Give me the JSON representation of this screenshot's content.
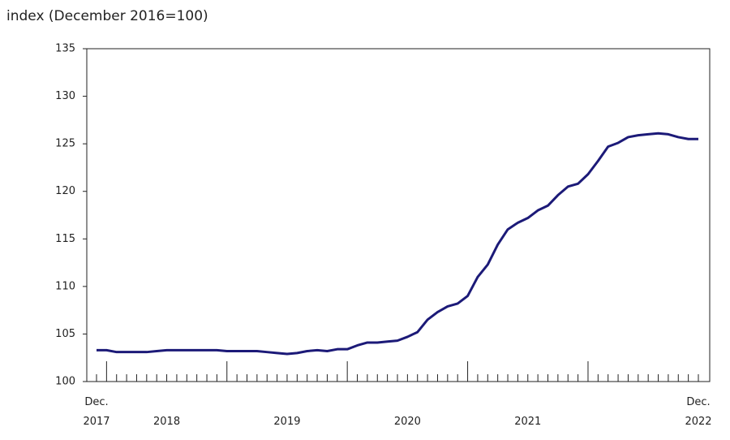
{
  "chart_data": {
    "type": "line",
    "title": "index (December 2016=100)",
    "categories": [
      "Dec. 2017",
      null,
      null,
      null,
      null,
      null,
      null,
      "2018",
      null,
      null,
      null,
      null,
      null,
      null,
      null,
      null,
      null,
      null,
      null,
      "2019",
      null,
      null,
      null,
      null,
      null,
      null,
      null,
      null,
      null,
      null,
      null,
      "2020",
      null,
      null,
      null,
      null,
      null,
      null,
      null,
      null,
      null,
      null,
      null,
      "2021",
      null,
      null,
      null,
      null,
      null,
      null,
      null,
      null,
      null,
      null,
      null,
      null,
      null,
      null,
      null,
      null,
      "Dec. 2022"
    ],
    "series": [
      {
        "color": "#1c1a78",
        "values": [
          103.3,
          103.3,
          103.1,
          103.1,
          103.1,
          103.1,
          103.2,
          103.3,
          103.3,
          103.3,
          103.3,
          103.3,
          103.3,
          103.2,
          103.2,
          103.2,
          103.2,
          103.1,
          103.0,
          102.9,
          103.0,
          103.2,
          103.3,
          103.2,
          103.4,
          103.4,
          103.8,
          104.1,
          104.1,
          104.2,
          104.3,
          104.7,
          105.2,
          106.5,
          107.3,
          107.9,
          108.2,
          109.0,
          111.0,
          112.3,
          114.4,
          116.0,
          116.7,
          117.2,
          118.0,
          118.5,
          119.6,
          120.5,
          120.8,
          121.8,
          123.2,
          124.7,
          125.1,
          125.7,
          125.9,
          126.0,
          126.1,
          126.0,
          125.7,
          125.5,
          125.5
        ]
      }
    ],
    "ylim": [
      100,
      135
    ],
    "yticks": [
      100,
      105,
      110,
      115,
      120,
      125,
      130,
      135
    ],
    "grid": false
  }
}
